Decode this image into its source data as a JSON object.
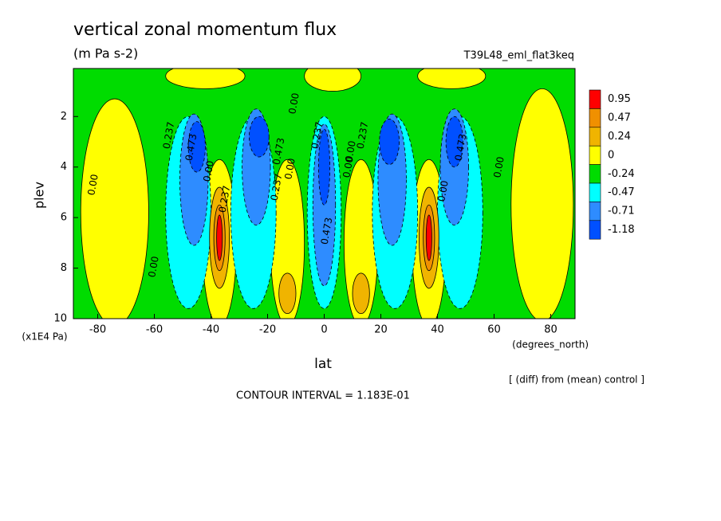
{
  "chart_data": {
    "type": "contour",
    "title": "vertical zonal momentum flux",
    "subtitle": "(m Pa s-2)",
    "run_label": "T39L48_eml_flat3keq",
    "x_label": "lat",
    "x_unit": "(degrees_north)",
    "y_label": "plev",
    "y_unit": "(x1E4 Pa)",
    "note": "[ (diff) from (mean) control ]",
    "contour_interval": "CONTOUR INTERVAL = 1.183E-01",
    "xlim": [
      -88.6,
      88.6
    ],
    "xticks": [
      -80,
      -60,
      -40,
      -20,
      0,
      20,
      40,
      60,
      80
    ],
    "ylim": [
      0.1,
      10
    ],
    "yticks": [
      2,
      4,
      6,
      8,
      10
    ],
    "colorbar": {
      "levels": [
        0.95,
        0.47,
        0.24,
        0,
        -0.24,
        -0.47,
        -0.71,
        -1.18
      ],
      "colors": [
        "#ff0000",
        "#f09000",
        "#f0b400",
        "#ffff00",
        "#00dc00",
        "#00ffff",
        "#2e8cff",
        "#0050ff"
      ]
    },
    "contour_labels": [
      "0.00",
      "0.237",
      "0.473",
      "0.00",
      "0.237",
      "0.00",
      "0.473",
      "0.00",
      "0.237",
      "0.00",
      "0.473",
      "0.00",
      "0.237",
      "0.00",
      "0.237",
      "0.473",
      "0.00",
      "0.00"
    ]
  }
}
